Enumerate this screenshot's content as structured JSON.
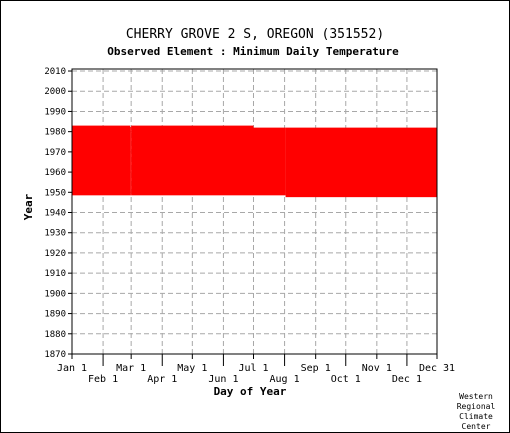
{
  "chart_data": {
    "type": "bar",
    "title": "CHERRY GROVE 2 S, OREGON   (351552)",
    "subtitle": "Observed Element : Minimum Daily Temperature",
    "xlabel": "Day of Year",
    "ylabel": "Year",
    "ylim": [
      1870,
      2011
    ],
    "y_ticks": [
      1870,
      1880,
      1890,
      1900,
      1910,
      1920,
      1930,
      1940,
      1950,
      1960,
      1970,
      1980,
      1990,
      2000,
      2010
    ],
    "xlim": [
      1,
      365
    ],
    "x_ticks_upper": [
      {
        "label": "Jan 1",
        "day": 1
      },
      {
        "label": "Mar 1",
        "day": 60
      },
      {
        "label": "May 1",
        "day": 121
      },
      {
        "label": "Jul 1",
        "day": 182
      },
      {
        "label": "Sep 1",
        "day": 244
      },
      {
        "label": "Nov 1",
        "day": 305
      },
      {
        "label": "Dec 31",
        "day": 365
      }
    ],
    "x_ticks_lower": [
      {
        "label": "Feb 1",
        "day": 32
      },
      {
        "label": "Apr 1",
        "day": 91
      },
      {
        "label": "Jun 1",
        "day": 152
      },
      {
        "label": "Aug 1",
        "day": 213
      },
      {
        "label": "Oct 1",
        "day": 274
      },
      {
        "label": "Dec 1",
        "day": 335
      }
    ],
    "grid": true,
    "series": [
      {
        "color": "#ff0000",
        "segments": [
          {
            "day_start": 1,
            "day_end": 59,
            "year_start": 1948.5,
            "year_end": 1983.0
          },
          {
            "day_start": 59,
            "day_end": 60,
            "year_start": 1948.5,
            "year_end": 1982.3
          },
          {
            "day_start": 60,
            "day_end": 182,
            "year_start": 1948.5,
            "year_end": 1983.0
          },
          {
            "day_start": 182,
            "day_end": 214,
            "year_start": 1948.5,
            "year_end": 1982.0
          },
          {
            "day_start": 214,
            "day_end": 365,
            "year_start": 1947.6,
            "year_end": 1982.0
          }
        ]
      }
    ]
  },
  "credit": [
    "Western",
    "Regional",
    "Climate",
    "Center"
  ]
}
